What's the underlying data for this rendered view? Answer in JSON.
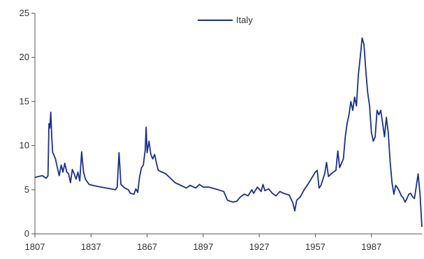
{
  "chart_data": {
    "type": "line",
    "title": "",
    "xlabel": "",
    "ylabel": "",
    "xlim": [
      1807,
      2014
    ],
    "ylim": [
      0,
      25
    ],
    "x_ticks": [
      "1807",
      "1837",
      "1867",
      "1897",
      "1927",
      "1957",
      "1987"
    ],
    "y_ticks": [
      "0",
      "5",
      "10",
      "15",
      "20",
      "25"
    ],
    "grid": false,
    "legend_position": "top-center",
    "series": [
      {
        "name": "Italy",
        "color": "#1a2f8f",
        "points": [
          [
            1807,
            6.4
          ],
          [
            1809,
            6.5
          ],
          [
            1811,
            6.6
          ],
          [
            1813,
            6.3
          ],
          [
            1814,
            6.6
          ],
          [
            1814.5,
            12.5
          ],
          [
            1815,
            12.0
          ],
          [
            1815.5,
            13.8
          ],
          [
            1816,
            11.0
          ],
          [
            1816.5,
            9.2
          ],
          [
            1817,
            9.0
          ],
          [
            1818,
            8.5
          ],
          [
            1819,
            7.5
          ],
          [
            1820,
            6.6
          ],
          [
            1821,
            7.8
          ],
          [
            1822,
            7.0
          ],
          [
            1823,
            8.0
          ],
          [
            1824,
            7.0
          ],
          [
            1825,
            6.8
          ],
          [
            1826,
            5.8
          ],
          [
            1827,
            7.3
          ],
          [
            1828,
            6.8
          ],
          [
            1829,
            6.2
          ],
          [
            1830,
            7.0
          ],
          [
            1831,
            6.0
          ],
          [
            1832,
            9.3
          ],
          [
            1833,
            7.0
          ],
          [
            1834,
            6.2
          ],
          [
            1836,
            5.6
          ],
          [
            1840,
            5.4
          ],
          [
            1845,
            5.2
          ],
          [
            1850,
            5.0
          ],
          [
            1851,
            5.3
          ],
          [
            1852,
            9.2
          ],
          [
            1853,
            5.6
          ],
          [
            1855,
            5.2
          ],
          [
            1857,
            5.0
          ],
          [
            1858,
            4.6
          ],
          [
            1860,
            4.5
          ],
          [
            1861,
            5.1
          ],
          [
            1862,
            4.7
          ],
          [
            1863,
            6.5
          ],
          [
            1864,
            7.5
          ],
          [
            1865,
            7.8
          ],
          [
            1866,
            9.5
          ],
          [
            1866.5,
            12.1
          ],
          [
            1867,
            9.2
          ],
          [
            1868,
            10.5
          ],
          [
            1869,
            9.0
          ],
          [
            1870,
            8.5
          ],
          [
            1871,
            9.0
          ],
          [
            1872,
            8.0
          ],
          [
            1873,
            7.2
          ],
          [
            1875,
            7.0
          ],
          [
            1877,
            6.8
          ],
          [
            1880,
            6.2
          ],
          [
            1882,
            5.8
          ],
          [
            1885,
            5.5
          ],
          [
            1888,
            5.2
          ],
          [
            1890,
            5.5
          ],
          [
            1893,
            5.2
          ],
          [
            1895,
            5.6
          ],
          [
            1897,
            5.3
          ],
          [
            1900,
            5.3
          ],
          [
            1905,
            5.0
          ],
          [
            1908,
            4.8
          ],
          [
            1910,
            3.8
          ],
          [
            1913,
            3.6
          ],
          [
            1915,
            3.7
          ],
          [
            1917,
            4.2
          ],
          [
            1919,
            4.5
          ],
          [
            1921,
            4.3
          ],
          [
            1923,
            5.0
          ],
          [
            1924,
            4.6
          ],
          [
            1926,
            5.3
          ],
          [
            1928,
            4.8
          ],
          [
            1929,
            5.6
          ],
          [
            1930,
            4.9
          ],
          [
            1932,
            5.1
          ],
          [
            1934,
            4.6
          ],
          [
            1936,
            4.3
          ],
          [
            1938,
            4.8
          ],
          [
            1940,
            4.6
          ],
          [
            1943,
            4.4
          ],
          [
            1945,
            3.5
          ],
          [
            1946,
            2.6
          ],
          [
            1947,
            3.8
          ],
          [
            1949,
            4.2
          ],
          [
            1951,
            5.0
          ],
          [
            1953,
            5.6
          ],
          [
            1955,
            6.3
          ],
          [
            1957,
            7.0
          ],
          [
            1958,
            7.2
          ],
          [
            1959,
            5.2
          ],
          [
            1960,
            5.5
          ],
          [
            1962,
            6.8
          ],
          [
            1963,
            8.1
          ],
          [
            1964,
            6.5
          ],
          [
            1966,
            6.9
          ],
          [
            1968,
            7.2
          ],
          [
            1969,
            9.4
          ],
          [
            1970,
            7.5
          ],
          [
            1972,
            8.5
          ],
          [
            1973,
            11.0
          ],
          [
            1974,
            12.5
          ],
          [
            1975,
            13.5
          ],
          [
            1976,
            15.0
          ],
          [
            1977,
            14.0
          ],
          [
            1978,
            15.5
          ],
          [
            1979,
            14.5
          ],
          [
            1980,
            18.0
          ],
          [
            1981,
            20.0
          ],
          [
            1982,
            22.2
          ],
          [
            1983,
            21.5
          ],
          [
            1984,
            18.5
          ],
          [
            1985,
            16.0
          ],
          [
            1986,
            14.5
          ],
          [
            1987,
            11.5
          ],
          [
            1988,
            10.5
          ],
          [
            1989,
            11.0
          ],
          [
            1990,
            14.0
          ],
          [
            1991,
            13.5
          ],
          [
            1992,
            14.0
          ],
          [
            1993,
            12.5
          ],
          [
            1994,
            11.0
          ],
          [
            1995,
            13.2
          ],
          [
            1996,
            11.5
          ],
          [
            1997,
            8.2
          ],
          [
            1998,
            5.8
          ],
          [
            1999,
            4.5
          ],
          [
            2000,
            5.5
          ],
          [
            2001,
            5.2
          ],
          [
            2002,
            4.8
          ],
          [
            2003,
            4.3
          ],
          [
            2004,
            4.1
          ],
          [
            2005,
            3.6
          ],
          [
            2006,
            4.0
          ],
          [
            2007,
            4.5
          ],
          [
            2008,
            4.6
          ],
          [
            2009,
            4.2
          ],
          [
            2010,
            4.0
          ],
          [
            2011,
            5.4
          ],
          [
            2012,
            6.8
          ],
          [
            2013,
            4.5
          ],
          [
            2014,
            0.8
          ]
        ]
      }
    ]
  }
}
